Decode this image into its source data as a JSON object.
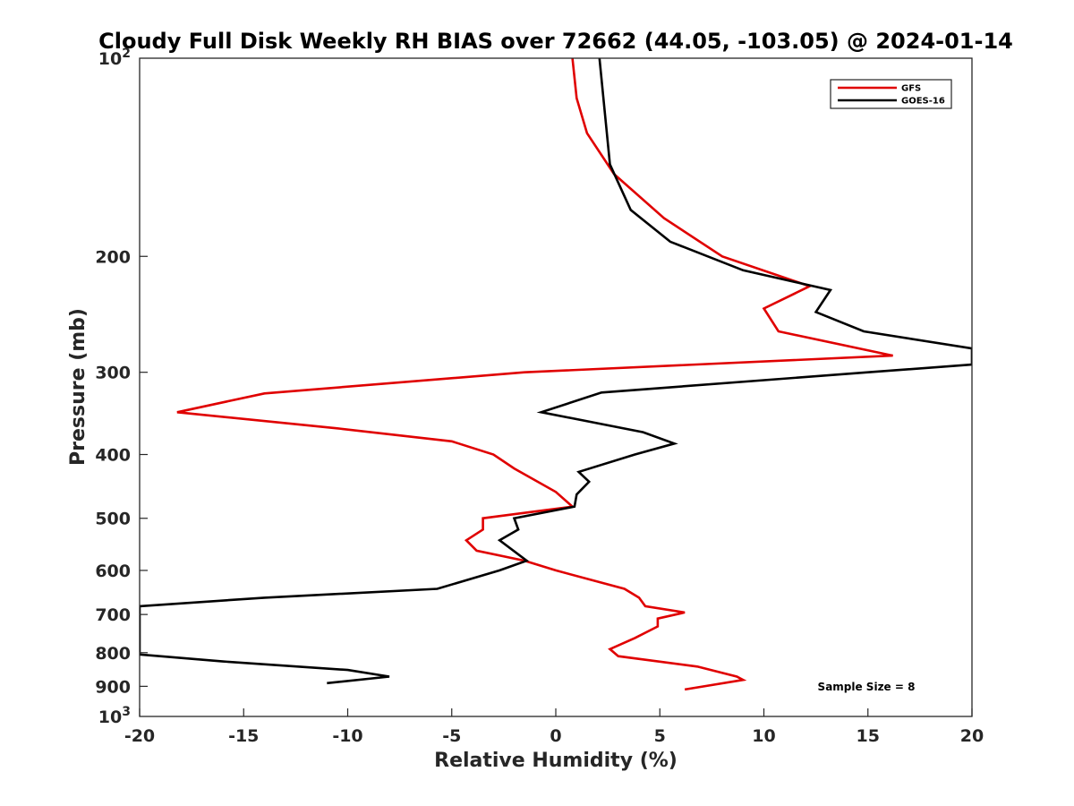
{
  "chart_data": {
    "type": "line",
    "title": "Cloudy Full Disk Weekly RH BIAS over 72662 (44.05, -103.05) @ 2024-01-14",
    "xlabel": "Relative Humidity (%)",
    "ylabel": "Pressure (mb)",
    "xlim": [
      -20,
      20
    ],
    "ylim": [
      100,
      1000
    ],
    "yscale": "log",
    "y_reversed": true,
    "grid": false,
    "legend_position": "top-right",
    "xticks": [
      -20,
      -15,
      -10,
      -5,
      0,
      5,
      10,
      15,
      20
    ],
    "xtick_labels": [
      "-20",
      "-15",
      "-10",
      "-5",
      "0",
      "5",
      "10",
      "15",
      "20"
    ],
    "yticks": [
      200,
      300,
      400,
      500,
      600,
      700,
      800,
      900
    ],
    "ytick_labels": [
      "200",
      "300",
      "400",
      "500",
      "600",
      "700",
      "800",
      "900"
    ],
    "ytick_decades": [
      {
        "value": 100,
        "base": "10",
        "exp": "2"
      },
      {
        "value": 1000,
        "base": "10",
        "exp": "3"
      }
    ],
    "annotation": "Sample Size = 8",
    "series": [
      {
        "name": "GFS",
        "color": "#e00000",
        "points": [
          [
            0.8,
            100
          ],
          [
            1.0,
            115
          ],
          [
            1.5,
            130
          ],
          [
            2.8,
            150
          ],
          [
            5.2,
            175
          ],
          [
            8.0,
            200
          ],
          [
            12.2,
            222
          ],
          [
            10.0,
            240
          ],
          [
            10.7,
            260
          ],
          [
            16.2,
            283
          ],
          [
            -1.5,
            300
          ],
          [
            -14.0,
            323
          ],
          [
            -18.2,
            345
          ],
          [
            -10.5,
            365
          ],
          [
            -5.0,
            382
          ],
          [
            -3.0,
            400
          ],
          [
            -2.0,
            420
          ],
          [
            0.0,
            456
          ],
          [
            0.8,
            480
          ],
          [
            -3.5,
            500
          ],
          [
            -3.5,
            520
          ],
          [
            -4.3,
            540
          ],
          [
            -3.8,
            560
          ],
          [
            -1.5,
            580
          ],
          [
            0.0,
            600
          ],
          [
            3.3,
            640
          ],
          [
            4.0,
            660
          ],
          [
            4.3,
            680
          ],
          [
            6.2,
            695
          ],
          [
            4.9,
            710
          ],
          [
            4.9,
            730
          ],
          [
            3.8,
            760
          ],
          [
            2.6,
            790
          ],
          [
            3.0,
            810
          ],
          [
            6.8,
            840
          ],
          [
            8.7,
            870
          ],
          [
            9.0,
            880
          ],
          [
            6.2,
            910
          ]
        ]
      },
      {
        "name": "GOES-16",
        "color": "#000000",
        "points": [
          [
            2.1,
            100
          ],
          [
            2.6,
            145
          ],
          [
            3.6,
            170
          ],
          [
            5.5,
            190
          ],
          [
            9.0,
            210
          ],
          [
            13.2,
            225
          ],
          [
            12.5,
            243
          ],
          [
            14.8,
            260
          ],
          [
            20.0,
            276
          ],
          [
            20.0,
            292
          ],
          [
            15.0,
            300
          ],
          [
            2.2,
            322
          ],
          [
            -0.7,
            345
          ],
          [
            4.2,
            370
          ],
          [
            5.7,
            385
          ],
          [
            3.8,
            400
          ],
          [
            1.1,
            425
          ],
          [
            1.6,
            440
          ],
          [
            1.0,
            460
          ],
          [
            0.9,
            480
          ],
          [
            -2.0,
            500
          ],
          [
            -1.8,
            520
          ],
          [
            -2.7,
            540
          ],
          [
            -1.4,
            580
          ],
          [
            -2.7,
            600
          ],
          [
            -5.7,
            640
          ],
          [
            -14.0,
            660
          ],
          [
            -20.0,
            680
          ],
          [
            -20.0,
            805
          ],
          [
            -16.0,
            825
          ],
          [
            -10.0,
            850
          ],
          [
            -8.0,
            870
          ],
          [
            -11.0,
            890
          ]
        ]
      }
    ]
  }
}
